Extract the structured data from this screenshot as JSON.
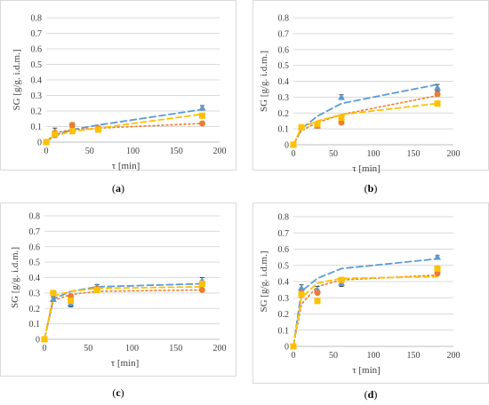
{
  "chart_data": [
    {
      "type": "line",
      "panel_label": "a",
      "xlabel": "τ [min]",
      "ylabel": "SG [g/g. i.d.m.]",
      "xlim": [
        0,
        200
      ],
      "ylim": [
        0,
        0.8
      ],
      "xticks": [
        0,
        50,
        100,
        150,
        200
      ],
      "yticks": [
        0,
        0.1,
        0.2,
        0.3,
        0.4,
        0.5,
        0.6,
        0.7,
        0.8
      ],
      "grid": true,
      "series": [
        {
          "color": "#5b9bd5",
          "marker": "triangle",
          "points": [
            [
              0,
              0.0
            ],
            [
              10,
              0.06
            ],
            [
              30,
              0.08
            ],
            [
              60,
              0.09
            ],
            [
              180,
              0.22
            ]
          ],
          "errors": [
            0.005,
            0.03,
            0.015,
            0.01,
            0.015
          ],
          "line": [
            [
              0,
              0.0
            ],
            [
              10,
              0.045
            ],
            [
              30,
              0.08
            ],
            [
              60,
              0.11
            ],
            [
              180,
              0.21
            ]
          ]
        },
        {
          "color": "#ed7d31",
          "marker": "circle",
          "points": [
            [
              0,
              0.0
            ],
            [
              10,
              0.06
            ],
            [
              30,
              0.11
            ],
            [
              60,
              0.09
            ],
            [
              180,
              0.12
            ]
          ],
          "errors": [
            0.005,
            0.01,
            0.015,
            0.01,
            0.005
          ],
          "line": [
            [
              0,
              0.0
            ],
            [
              10,
              0.06
            ],
            [
              30,
              0.08
            ],
            [
              60,
              0.09
            ],
            [
              180,
              0.12
            ]
          ]
        },
        {
          "color": "#ffc000",
          "marker": "square",
          "points": [
            [
              0,
              0.0
            ],
            [
              10,
              0.05
            ],
            [
              30,
              0.07
            ],
            [
              60,
              0.08
            ],
            [
              180,
              0.17
            ]
          ],
          "errors": [
            0.005,
            0.01,
            0.01,
            0.01,
            0.01
          ],
          "line": [
            [
              0,
              0.0
            ],
            [
              10,
              0.04
            ],
            [
              30,
              0.07
            ],
            [
              60,
              0.09
            ],
            [
              180,
              0.18
            ]
          ]
        }
      ]
    },
    {
      "type": "line",
      "panel_label": "b",
      "xlabel": "τ [min]",
      "ylabel": "SG [g/g. i.d.m.]",
      "xlim": [
        0,
        200
      ],
      "ylim": [
        0,
        0.8
      ],
      "xticks": [
        0,
        50,
        100,
        150,
        200
      ],
      "yticks": [
        0,
        0.1,
        0.2,
        0.3,
        0.4,
        0.5,
        0.6,
        0.7,
        0.8
      ],
      "grid": true,
      "series": [
        {
          "color": "#5b9bd5",
          "marker": "triangle",
          "points": [
            [
              0,
              0.0
            ],
            [
              10,
              0.11
            ],
            [
              30,
              0.12
            ],
            [
              60,
              0.3
            ],
            [
              180,
              0.36
            ]
          ],
          "errors": [
            0.005,
            0.01,
            0.015,
            0.015,
            0.02
          ],
          "line": [
            [
              0,
              0.0
            ],
            [
              10,
              0.1
            ],
            [
              30,
              0.18
            ],
            [
              60,
              0.26
            ],
            [
              180,
              0.38
            ]
          ]
        },
        {
          "color": "#ed7d31",
          "marker": "circle",
          "points": [
            [
              0,
              0.0
            ],
            [
              10,
              0.11
            ],
            [
              30,
              0.12
            ],
            [
              60,
              0.14
            ],
            [
              180,
              0.32
            ]
          ],
          "errors": [
            0.005,
            0.01,
            0.01,
            0.01,
            0.015
          ],
          "line": [
            [
              0,
              0.0
            ],
            [
              10,
              0.09
            ],
            [
              30,
              0.14
            ],
            [
              60,
              0.19
            ],
            [
              180,
              0.31
            ]
          ]
        },
        {
          "color": "#ffc000",
          "marker": "square",
          "points": [
            [
              0,
              0.0
            ],
            [
              10,
              0.11
            ],
            [
              30,
              0.13
            ],
            [
              60,
              0.17
            ],
            [
              180,
              0.26
            ]
          ],
          "errors": [
            0.005,
            0.01,
            0.01,
            0.01,
            0.01
          ],
          "line": [
            [
              0,
              0.0
            ],
            [
              10,
              0.11
            ],
            [
              30,
              0.15
            ],
            [
              60,
              0.19
            ],
            [
              180,
              0.26
            ]
          ]
        }
      ]
    },
    {
      "type": "line",
      "panel_label": "c",
      "xlabel": "τ [min]",
      "ylabel": "SG [g/g. i.d.m.]",
      "xlim": [
        0,
        200
      ],
      "ylim": [
        0,
        0.8
      ],
      "xticks": [
        0,
        50,
        100,
        150,
        200
      ],
      "yticks": [
        0,
        0.1,
        0.2,
        0.3,
        0.4,
        0.5,
        0.6,
        0.7,
        0.8
      ],
      "grid": true,
      "series": [
        {
          "color": "#5b9bd5",
          "marker": "triangle",
          "points": [
            [
              0,
              0.0
            ],
            [
              10,
              0.26
            ],
            [
              30,
              0.23
            ],
            [
              60,
              0.34
            ],
            [
              180,
              0.38
            ]
          ],
          "errors": [
            0.005,
            0.015,
            0.02,
            0.015,
            0.02
          ],
          "line": [
            [
              0,
              0.0
            ],
            [
              10,
              0.26
            ],
            [
              30,
              0.31
            ],
            [
              60,
              0.34
            ],
            [
              180,
              0.36
            ]
          ]
        },
        {
          "color": "#ed7d31",
          "marker": "circle",
          "points": [
            [
              0,
              0.0
            ],
            [
              10,
              0.3
            ],
            [
              30,
              0.28
            ],
            [
              60,
              0.33
            ],
            [
              180,
              0.32
            ]
          ],
          "errors": [
            0.005,
            0.01,
            0.01,
            0.01,
            0.01
          ],
          "line": [
            [
              0,
              0.0
            ],
            [
              10,
              0.25
            ],
            [
              30,
              0.29
            ],
            [
              60,
              0.31
            ],
            [
              180,
              0.32
            ]
          ]
        },
        {
          "color": "#ffc000",
          "marker": "square",
          "points": [
            [
              0,
              0.0
            ],
            [
              10,
              0.3
            ],
            [
              30,
              0.25
            ],
            [
              60,
              0.32
            ],
            [
              180,
              0.36
            ]
          ],
          "errors": [
            0.005,
            0.01,
            0.01,
            0.01,
            0.01
          ],
          "line": [
            [
              0,
              0.0
            ],
            [
              10,
              0.28
            ],
            [
              30,
              0.31
            ],
            [
              60,
              0.33
            ],
            [
              180,
              0.34
            ]
          ]
        }
      ]
    },
    {
      "type": "line",
      "panel_label": "d",
      "xlabel": "τ [min]",
      "ylabel": "SG [g/g. i.d.m.]",
      "xlim": [
        0,
        200
      ],
      "ylim": [
        0,
        0.8
      ],
      "xticks": [
        0,
        50,
        100,
        150,
        200
      ],
      "yticks": [
        0,
        0.1,
        0.2,
        0.3,
        0.4,
        0.5,
        0.6,
        0.7,
        0.8
      ],
      "grid": true,
      "series": [
        {
          "color": "#5b9bd5",
          "marker": "triangle",
          "points": [
            [
              0,
              0.0
            ],
            [
              10,
              0.36
            ],
            [
              30,
              0.35
            ],
            [
              60,
              0.39
            ],
            [
              180,
              0.55
            ]
          ],
          "errors": [
            0.005,
            0.02,
            0.02,
            0.02,
            0.01
          ],
          "line": [
            [
              0,
              0.0
            ],
            [
              10,
              0.34
            ],
            [
              30,
              0.42
            ],
            [
              60,
              0.48
            ],
            [
              180,
              0.54
            ]
          ]
        },
        {
          "color": "#ed7d31",
          "marker": "circle",
          "points": [
            [
              0,
              0.0
            ],
            [
              10,
              0.33
            ],
            [
              30,
              0.33
            ],
            [
              60,
              0.41
            ],
            [
              180,
              0.45
            ]
          ],
          "errors": [
            0.005,
            0.01,
            0.01,
            0.01,
            0.01
          ],
          "line": [
            [
              0,
              0.0
            ],
            [
              10,
              0.26
            ],
            [
              30,
              0.37
            ],
            [
              60,
              0.41
            ],
            [
              180,
              0.44
            ]
          ]
        },
        {
          "color": "#ffc000",
          "marker": "square",
          "points": [
            [
              0,
              0.0
            ],
            [
              10,
              0.32
            ],
            [
              30,
              0.28
            ],
            [
              60,
              0.41
            ],
            [
              180,
              0.48
            ]
          ],
          "errors": [
            0.005,
            0.01,
            0.01,
            0.01,
            0.01
          ],
          "line": [
            [
              0,
              0.0
            ],
            [
              10,
              0.3
            ],
            [
              30,
              0.39
            ],
            [
              60,
              0.42
            ],
            [
              180,
              0.43
            ]
          ]
        }
      ]
    }
  ]
}
